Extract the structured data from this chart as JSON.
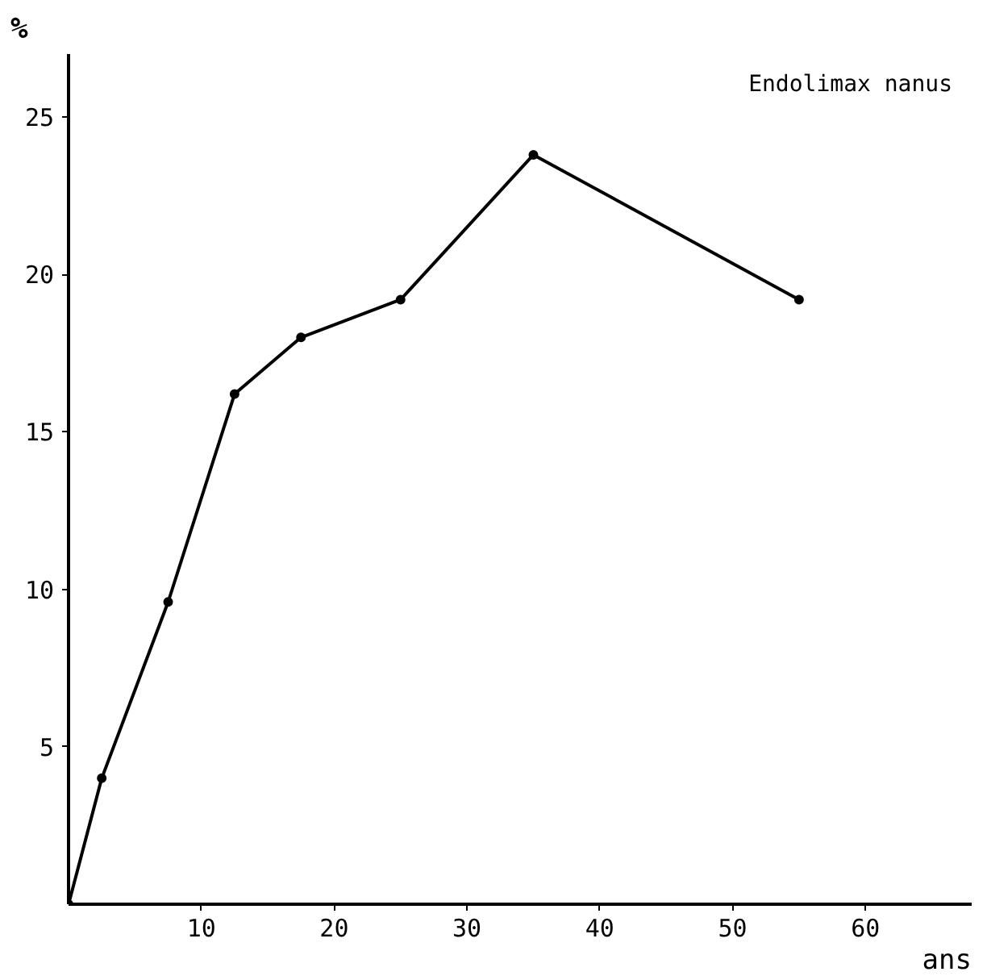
{
  "chart_data": {
    "type": "line",
    "ylabel": "%",
    "xlabel": "ans",
    "annotations": [
      "Endolimax nanus"
    ],
    "x": [
      0,
      2.5,
      7.5,
      12.5,
      17.5,
      25,
      35,
      55
    ],
    "series": [
      {
        "color": "#000000",
        "values": [
          0,
          4.0,
          9.6,
          16.2,
          18.0,
          19.2,
          23.8,
          19.2
        ]
      }
    ],
    "xlim": [
      0,
      68
    ],
    "ylim": [
      0,
      27
    ],
    "xticks": [
      10,
      20,
      30,
      40,
      50,
      60
    ],
    "yticks": [
      5,
      10,
      15,
      20,
      25
    ],
    "grid": false,
    "marker": "circle",
    "line_style": "solid"
  }
}
